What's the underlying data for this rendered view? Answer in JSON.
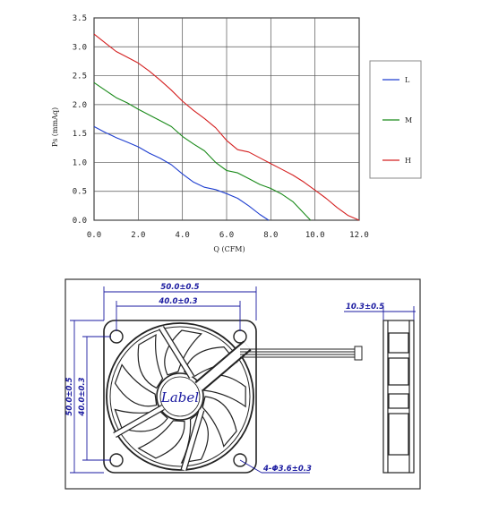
{
  "chart_data": {
    "type": "line",
    "xlabel": "Q (CFM)",
    "ylabel": "Ps (mmAq)",
    "xlim": [
      0,
      12
    ],
    "ylim": [
      0,
      3.5
    ],
    "x_ticks": [
      "0.0",
      "2.0",
      "4.0",
      "6.0",
      "8.0",
      "10.0",
      "12.0"
    ],
    "y_ticks": [
      "0.0",
      "0.5",
      "1.0",
      "1.5",
      "2.0",
      "2.5",
      "3.0",
      "3.5"
    ],
    "grid": true,
    "legend_position": "right",
    "series": [
      {
        "name": "L",
        "color": "#1f3fd0",
        "x": [
          0,
          0.5,
          1.0,
          1.5,
          2.0,
          2.5,
          3.0,
          3.5,
          4.0,
          4.5,
          5.0,
          5.5,
          6.0,
          6.5,
          7.0,
          7.5,
          7.9
        ],
        "y": [
          1.62,
          1.52,
          1.43,
          1.35,
          1.27,
          1.16,
          1.07,
          0.96,
          0.8,
          0.66,
          0.57,
          0.53,
          0.46,
          0.38,
          0.25,
          0.1,
          0.0
        ]
      },
      {
        "name": "M",
        "color": "#1a8a1a",
        "x": [
          0,
          0.5,
          1.0,
          1.5,
          2.0,
          2.5,
          3.0,
          3.5,
          4.0,
          4.5,
          5.0,
          5.5,
          6.0,
          6.5,
          7.0,
          7.5,
          8.0,
          8.5,
          9.0,
          9.5,
          9.8
        ],
        "y": [
          2.38,
          2.25,
          2.12,
          2.03,
          1.92,
          1.82,
          1.72,
          1.62,
          1.45,
          1.32,
          1.2,
          1.0,
          0.86,
          0.82,
          0.72,
          0.62,
          0.55,
          0.45,
          0.32,
          0.12,
          0.0
        ]
      },
      {
        "name": "H",
        "color": "#d42020",
        "x": [
          0,
          0.5,
          1.0,
          1.5,
          2.0,
          2.5,
          3.0,
          3.5,
          4.0,
          4.5,
          5.0,
          5.5,
          6.0,
          6.5,
          7.0,
          7.5,
          8.0,
          8.5,
          9.0,
          9.5,
          10.0,
          10.5,
          11.0,
          11.5,
          12.0
        ],
        "y": [
          3.22,
          3.07,
          2.92,
          2.82,
          2.72,
          2.58,
          2.42,
          2.25,
          2.06,
          1.9,
          1.76,
          1.6,
          1.38,
          1.22,
          1.18,
          1.08,
          0.98,
          0.88,
          0.78,
          0.66,
          0.52,
          0.38,
          0.22,
          0.08,
          0.0
        ]
      }
    ]
  },
  "drawing": {
    "dim_outer_width": "50.0±0.5",
    "dim_hole_width": "40.0±0.3",
    "dim_outer_height": "50.0±0.5",
    "dim_hole_height": "40.0±0.3",
    "dim_thickness": "10.3±0.5",
    "dim_holes": "4-Φ3.6±0.3",
    "label": "Label",
    "line_color": "#1a1aa0"
  }
}
